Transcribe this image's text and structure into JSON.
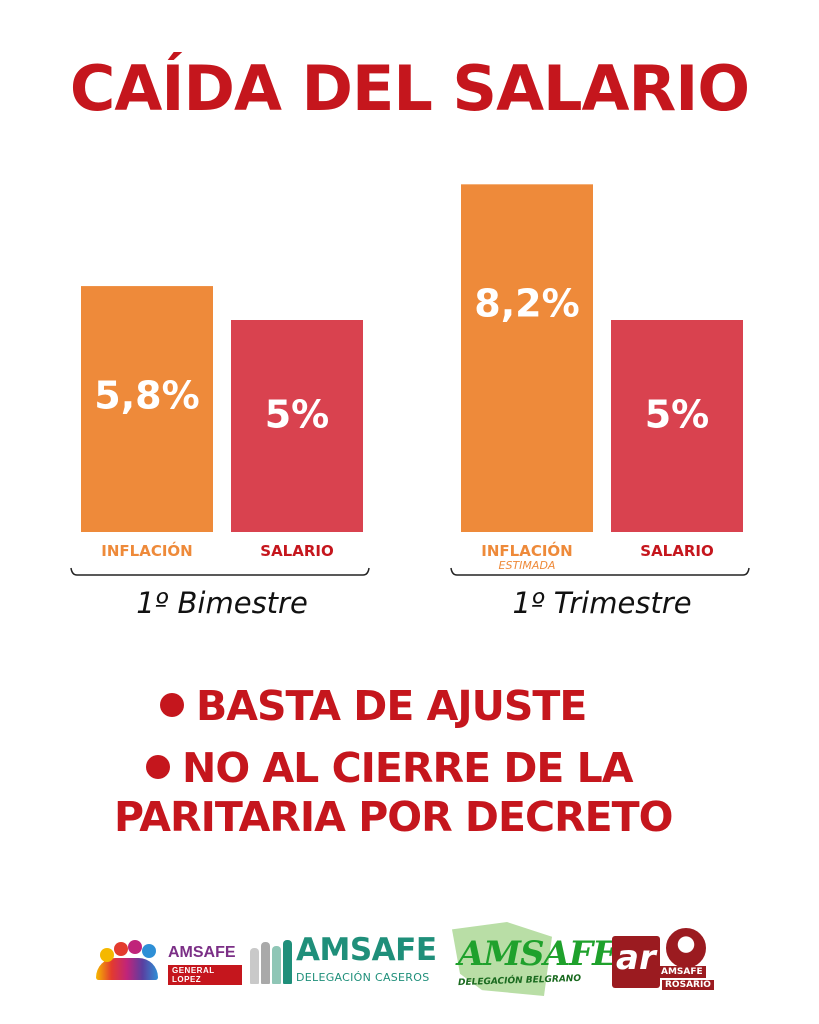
{
  "title": "CAÍDA DEL SALARIO",
  "colors": {
    "title": "#c5161d",
    "inflacion_bar": "#ee8a3a",
    "salario_bar": "#d9424f",
    "inflacion_text": "#ee8a3a",
    "salario_text": "#c5161d"
  },
  "chart_data": {
    "type": "bar",
    "title": "CAÍDA DEL SALARIO",
    "xlabel": "",
    "ylabel": "",
    "groups": [
      {
        "name": "1º Bimestre",
        "bars": [
          {
            "category": "INFLACIÓN",
            "sublabel": "",
            "value": 5.8,
            "label": "5,8%"
          },
          {
            "category": "SALARIO",
            "sublabel": "",
            "value": 5,
            "label": "5%"
          }
        ]
      },
      {
        "name": "1º Trimestre",
        "bars": [
          {
            "category": "INFLACIÓN",
            "sublabel": "ESTIMADA",
            "value": 8.2,
            "label": "8,2%"
          },
          {
            "category": "SALARIO",
            "sublabel": "",
            "value": 5,
            "label": "5%"
          }
        ]
      }
    ],
    "grid": false,
    "legend": "none"
  },
  "slogans": [
    "BASTA DE AJUSTE",
    "NO AL CIERRE DE LA",
    "PARITARIA POR DECRETO"
  ],
  "logos": {
    "general_lopez": {
      "name": "AMSAFE",
      "sub": "GENERAL LOPEZ"
    },
    "caseros": {
      "name": "AMSAFE",
      "sub": "DELEGACIÓN CASEROS"
    },
    "belgrano": {
      "name": "AMSAFE",
      "sub": "DELEGACIÓN BELGRANO"
    },
    "rosario": {
      "mark": "ar",
      "name": "AMSAFE",
      "sub": "ROSARIO"
    }
  }
}
